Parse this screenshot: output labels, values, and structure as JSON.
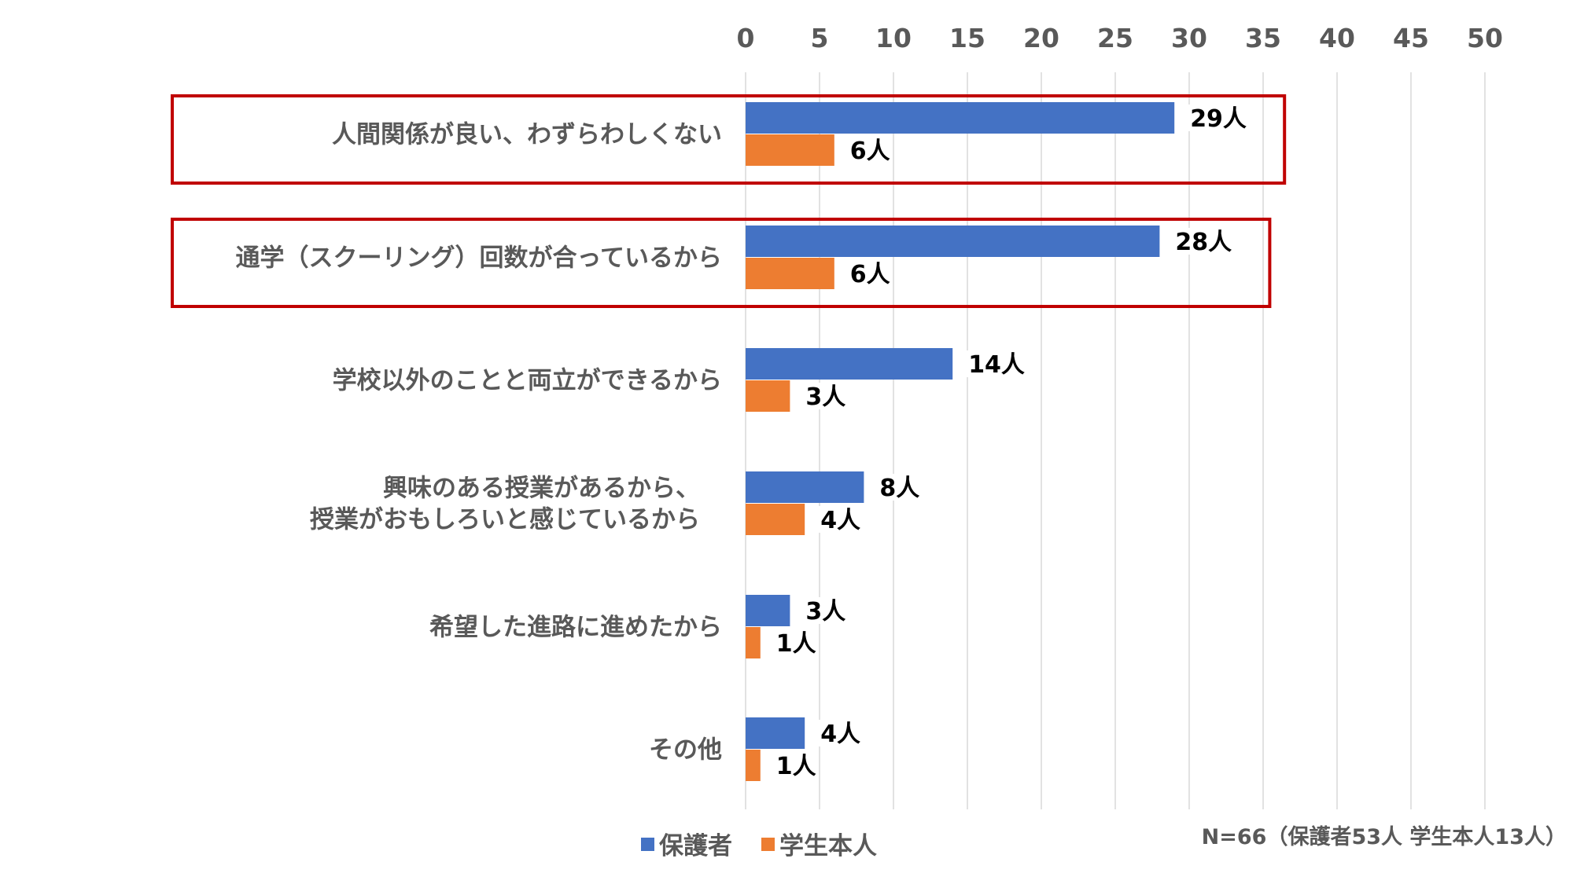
{
  "chart_data": {
    "type": "bar",
    "orientation": "horizontal",
    "categories": [
      [
        "人間関係が良い、わずらわしくない"
      ],
      [
        "通学（スクーリング）回数が合っているから"
      ],
      [
        "学校以外のことと両立ができるから"
      ],
      [
        "興味のある授業があるから、",
        "授業がおもしろいと感じているから"
      ],
      [
        "希望した進路に進めたから"
      ],
      [
        "その他"
      ]
    ],
    "series": [
      {
        "name": "保護者",
        "values": [
          29,
          28,
          14,
          8,
          3,
          4
        ],
        "labels": [
          "29人",
          "28人",
          "14人",
          "8人",
          "3人",
          "4人"
        ]
      },
      {
        "name": "学生本人",
        "values": [
          6,
          6,
          3,
          4,
          1,
          1
        ],
        "labels": [
          "6人",
          "6人",
          "3人",
          "4人",
          "1人",
          "1人"
        ]
      }
    ],
    "xlim": [
      0,
      50
    ],
    "ticks": [
      0,
      5,
      10,
      15,
      20,
      25,
      30,
      35,
      40,
      45,
      50
    ],
    "tick_labels": [
      "0",
      "5",
      "10",
      "15",
      "20",
      "25",
      "30",
      "35",
      "40",
      "45",
      "50"
    ],
    "axis_position": "top",
    "grid": true,
    "legend_position": "bottom",
    "highlighted_categories": [
      0,
      1
    ],
    "note": "N=66（保護者53人 学生本人13人）"
  },
  "colors": {
    "series": [
      "#4472C4",
      "#ED7D31"
    ],
    "grid": "#D9D9D9",
    "highlight": "#C00000",
    "text": "#595959"
  }
}
